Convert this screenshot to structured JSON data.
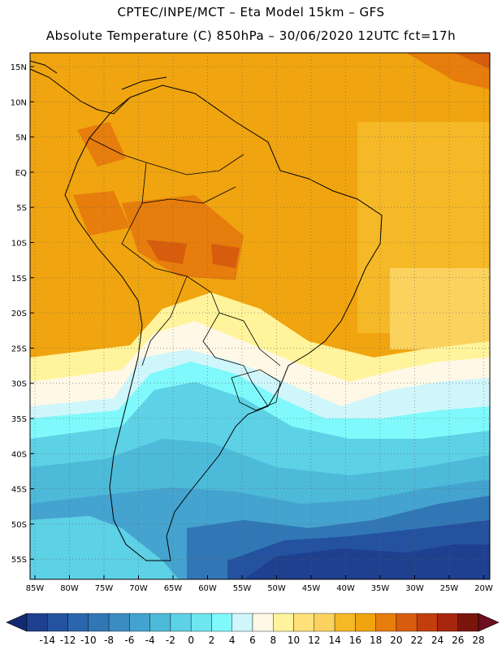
{
  "header": {
    "title_line1": "CPTEC/INPE/MCT –  Eta Model 15km – GFS",
    "title_line2": "Absolute Temperature (C) 850hPa – 30/06/2020 12UTC fct=17h"
  },
  "map": {
    "lat_labels": [
      "15N",
      "10N",
      "5N",
      "EQ",
      "5S",
      "10S",
      "15S",
      "20S",
      "25S",
      "30S",
      "35S",
      "40S",
      "45S",
      "50S",
      "55S"
    ],
    "lon_labels": [
      "85W",
      "80W",
      "75W",
      "70W",
      "65W",
      "60W",
      "55W",
      "50W",
      "45W",
      "40W",
      "35W",
      "30W",
      "25W",
      "20W"
    ]
  },
  "colorbar": {
    "labels": [
      "-14",
      "-12",
      "-10",
      "-8",
      "-6",
      "-4",
      "-2",
      "0",
      "2",
      "4",
      "6",
      "8",
      "10",
      "12",
      "14",
      "16",
      "18",
      "20",
      "22",
      "24",
      "26",
      "28"
    ],
    "colors": [
      "#1f3f8f",
      "#24529e",
      "#2a66ad",
      "#3177b6",
      "#3a8cc2",
      "#44a3cf",
      "#4dbad9",
      "#5dd1e5",
      "#6ee6ef",
      "#7ff9fb",
      "#cff6fb",
      "#fff8e6",
      "#fff49b",
      "#ffe27a",
      "#fcd25f",
      "#f5b827",
      "#f0a40f",
      "#e67d0c",
      "#d75c0d",
      "#c23e0c",
      "#a8260d",
      "#7b150c"
    ],
    "low_color": "#142a6e",
    "high_color": "#6c0d20"
  }
}
